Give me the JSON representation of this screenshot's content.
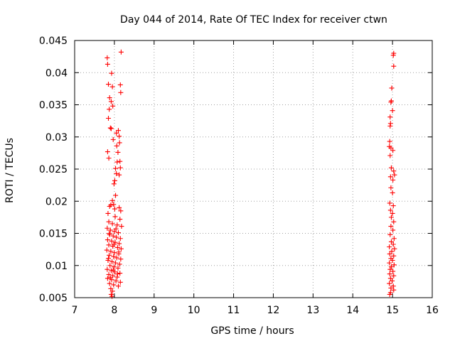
{
  "chart_data": {
    "type": "scatter",
    "title": "Day 044 of 2014, Rate Of TEC Index for receiver ctwn",
    "xlabel": "GPS time / hours",
    "ylabel": "ROTI / TECUs",
    "xlim": [
      7,
      16
    ],
    "ylim": [
      0.005,
      0.045
    ],
    "x_ticks": [
      "7",
      "8",
      "9",
      "10",
      "11",
      "12",
      "13",
      "14",
      "15",
      "16"
    ],
    "y_ticks": [
      "0.005",
      "0.01",
      "0.015",
      "0.02",
      "0.025",
      "0.03",
      "0.035",
      "0.04",
      "0.045"
    ],
    "grid": true,
    "marker": "+",
    "color": "#ff0000",
    "series": [
      {
        "name": "ROTI",
        "points": [
          [
            7.82,
            0.0423
          ],
          [
            7.83,
            0.0413
          ],
          [
            7.93,
            0.0399
          ],
          [
            8.17,
            0.0432
          ],
          [
            7.85,
            0.0382
          ],
          [
            7.95,
            0.0378
          ],
          [
            8.15,
            0.0381
          ],
          [
            8.16,
            0.0369
          ],
          [
            7.92,
            0.0355
          ],
          [
            7.88,
            0.0361
          ],
          [
            7.87,
            0.0343
          ],
          [
            7.96,
            0.0348
          ],
          [
            7.85,
            0.0329
          ],
          [
            7.9,
            0.0314
          ],
          [
            7.92,
            0.0313
          ],
          [
            8.05,
            0.0306
          ],
          [
            8.1,
            0.031
          ],
          [
            8.12,
            0.0301
          ],
          [
            7.97,
            0.0296
          ],
          [
            8.13,
            0.0291
          ],
          [
            8.06,
            0.0286
          ],
          [
            8.09,
            0.0276
          ],
          [
            7.83,
            0.0277
          ],
          [
            7.86,
            0.0267
          ],
          [
            8.07,
            0.0261
          ],
          [
            8.14,
            0.0262
          ],
          [
            8.03,
            0.0251
          ],
          [
            8.15,
            0.0252
          ],
          [
            8.01,
            0.0232
          ],
          [
            8.05,
            0.0243
          ],
          [
            8.12,
            0.0241
          ],
          [
            7.99,
            0.0227
          ],
          [
            8.03,
            0.0209
          ],
          [
            7.95,
            0.0201
          ],
          [
            7.98,
            0.0195
          ],
          [
            7.91,
            0.0194
          ],
          [
            7.88,
            0.0192
          ],
          [
            8.01,
            0.0188
          ],
          [
            8.12,
            0.019
          ],
          [
            8.16,
            0.0185
          ],
          [
            7.84,
            0.0181
          ],
          [
            8.02,
            0.0176
          ],
          [
            8.14,
            0.0172
          ],
          [
            7.86,
            0.0168
          ],
          [
            7.95,
            0.0165
          ],
          [
            8.07,
            0.0163
          ],
          [
            8.18,
            0.0161
          ],
          [
            7.82,
            0.0158
          ],
          [
            7.9,
            0.0155
          ],
          [
            8.0,
            0.0153
          ],
          [
            8.1,
            0.0151
          ],
          [
            7.88,
            0.0148
          ],
          [
            7.97,
            0.0146
          ],
          [
            8.05,
            0.0144
          ],
          [
            8.15,
            0.0142
          ],
          [
            7.83,
            0.014
          ],
          [
            7.93,
            0.0138
          ],
          [
            8.02,
            0.0136
          ],
          [
            8.12,
            0.0134
          ],
          [
            7.86,
            0.0132
          ],
          [
            7.96,
            0.013
          ],
          [
            8.08,
            0.0128
          ],
          [
            8.17,
            0.0126
          ],
          [
            7.81,
            0.0124
          ],
          [
            7.91,
            0.0122
          ],
          [
            8.0,
            0.012
          ],
          [
            8.11,
            0.0118
          ],
          [
            7.87,
            0.0116
          ],
          [
            7.98,
            0.0114
          ],
          [
            8.06,
            0.0112
          ],
          [
            8.16,
            0.011
          ],
          [
            7.84,
            0.0108
          ],
          [
            7.94,
            0.0106
          ],
          [
            8.03,
            0.0104
          ],
          [
            8.13,
            0.0102
          ],
          [
            7.89,
            0.01
          ],
          [
            7.99,
            0.0098
          ],
          [
            8.09,
            0.0096
          ],
          [
            7.82,
            0.0094
          ],
          [
            7.92,
            0.0092
          ],
          [
            8.01,
            0.009
          ],
          [
            8.14,
            0.0088
          ],
          [
            7.86,
            0.0086
          ],
          [
            7.96,
            0.0084
          ],
          [
            8.07,
            0.0082
          ],
          [
            7.83,
            0.008
          ],
          [
            7.93,
            0.0078
          ],
          [
            8.04,
            0.0076
          ],
          [
            8.15,
            0.0074
          ],
          [
            7.88,
            0.0072
          ],
          [
            7.98,
            0.007
          ],
          [
            8.1,
            0.0068
          ],
          [
            7.91,
            0.0064
          ],
          [
            7.95,
            0.006
          ],
          [
            7.92,
            0.0055
          ],
          [
            7.94,
            0.0052
          ],
          [
            7.87,
            0.015
          ],
          [
            8.04,
            0.0157
          ],
          [
            7.99,
            0.0133
          ],
          [
            8.11,
            0.0121
          ],
          [
            7.85,
            0.0111
          ],
          [
            7.97,
            0.0093
          ],
          [
            8.08,
            0.0087
          ],
          [
            7.9,
            0.0081
          ],
          [
            15.03,
            0.043
          ],
          [
            15.02,
            0.0427
          ],
          [
            15.03,
            0.041
          ],
          [
            14.98,
            0.0376
          ],
          [
            14.97,
            0.0356
          ],
          [
            14.96,
            0.0354
          ],
          [
            15.0,
            0.0341
          ],
          [
            14.94,
            0.0331
          ],
          [
            14.95,
            0.0321
          ],
          [
            14.94,
            0.0317
          ],
          [
            14.93,
            0.0293
          ],
          [
            14.92,
            0.0285
          ],
          [
            14.96,
            0.0283
          ],
          [
            15.01,
            0.0279
          ],
          [
            14.94,
            0.0271
          ],
          [
            14.97,
            0.0252
          ],
          [
            15.03,
            0.0247
          ],
          [
            15.05,
            0.0241
          ],
          [
            14.95,
            0.0238
          ],
          [
            15.01,
            0.0233
          ],
          [
            14.96,
            0.0221
          ],
          [
            15.0,
            0.0213
          ],
          [
            14.93,
            0.0197
          ],
          [
            15.02,
            0.0193
          ],
          [
            14.95,
            0.0186
          ],
          [
            15.0,
            0.0181
          ],
          [
            14.97,
            0.0175
          ],
          [
            15.03,
            0.0168
          ],
          [
            14.96,
            0.0161
          ],
          [
            15.01,
            0.0155
          ],
          [
            14.94,
            0.0148
          ],
          [
            15.04,
            0.0142
          ],
          [
            14.97,
            0.0137
          ],
          [
            15.02,
            0.0133
          ],
          [
            14.92,
            0.0129
          ],
          [
            15.05,
            0.0126
          ],
          [
            14.98,
            0.0122
          ],
          [
            14.93,
            0.0118
          ],
          [
            15.03,
            0.0115
          ],
          [
            14.96,
            0.0111
          ],
          [
            15.0,
            0.0108
          ],
          [
            14.92,
            0.0104
          ],
          [
            15.04,
            0.0101
          ],
          [
            14.97,
            0.0098
          ],
          [
            14.94,
            0.0094
          ],
          [
            15.01,
            0.0091
          ],
          [
            14.93,
            0.0087
          ],
          [
            15.03,
            0.0084
          ],
          [
            14.95,
            0.008
          ],
          [
            14.99,
            0.0076
          ],
          [
            14.92,
            0.0072
          ],
          [
            15.02,
            0.0068
          ],
          [
            14.96,
            0.0065
          ],
          [
            15.03,
            0.0062
          ],
          [
            14.95,
            0.0058
          ],
          [
            14.93,
            0.0055
          ]
        ]
      }
    ]
  }
}
